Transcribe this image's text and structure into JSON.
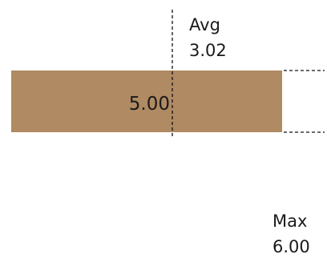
{
  "chart_data": {
    "type": "bar",
    "orientation": "horizontal",
    "values": [
      5.0
    ],
    "value_labels": [
      "5.00"
    ],
    "xlim": [
      0,
      6
    ],
    "bar_color": "#b08a63",
    "reference_lines": [
      {
        "label": "Avg",
        "value_text": "3.02",
        "value": 3.02
      },
      {
        "label": "Max",
        "value_text": "6.00",
        "value": 6.0
      }
    ]
  }
}
